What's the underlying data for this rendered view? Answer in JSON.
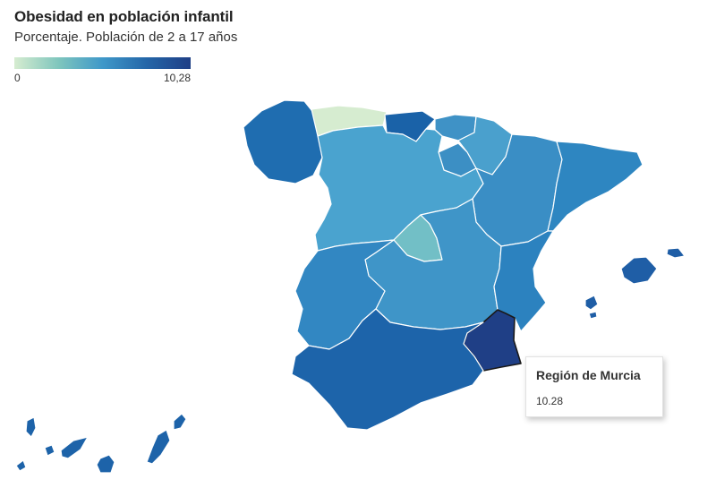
{
  "header": {
    "title": "Obesidad en población infantil",
    "subtitle": "Porcentaje. Población de 2 a 17 años"
  },
  "legend": {
    "min_label": "0",
    "max_label": "10,28",
    "colors": [
      "#d6ecd0",
      "#7fc6bd",
      "#3f98c9",
      "#2466a8",
      "#1f3f86"
    ]
  },
  "tooltip": {
    "region": "Región de Murcia",
    "value": "10.28"
  },
  "regions": [
    {
      "id": "galicia",
      "name": "Galicia",
      "color": "#1f6db0"
    },
    {
      "id": "asturias",
      "name": "Asturias",
      "color": "#d6ecd0"
    },
    {
      "id": "cantabria",
      "name": "Cantabria",
      "color": "#1a62a8"
    },
    {
      "id": "pais-vasco",
      "name": "País Vasco",
      "color": "#3f92c6"
    },
    {
      "id": "navarra",
      "name": "Navarra",
      "color": "#4aa0cd"
    },
    {
      "id": "la-rioja",
      "name": "La Rioja",
      "color": "#3c8fc4"
    },
    {
      "id": "castilla-y-leon",
      "name": "Castilla y León",
      "color": "#4aa3cf"
    },
    {
      "id": "aragon",
      "name": "Aragón",
      "color": "#3a8ec5"
    },
    {
      "id": "cataluna",
      "name": "Cataluña",
      "color": "#2e86c1"
    },
    {
      "id": "madrid",
      "name": "Madrid",
      "color": "#72bfc6"
    },
    {
      "id": "castilla-la-mancha",
      "name": "Castilla-La Mancha",
      "color": "#3f95c8"
    },
    {
      "id": "extremadura",
      "name": "Extremadura",
      "color": "#3287c2"
    },
    {
      "id": "comunidad-valenciana",
      "name": "Comunidad Valenciana",
      "color": "#2c82bf"
    },
    {
      "id": "region-de-murcia",
      "name": "Región de Murcia",
      "color": "#1f3f86"
    },
    {
      "id": "andalucia",
      "name": "Andalucía",
      "color": "#1d64aa"
    },
    {
      "id": "islas-baleares",
      "name": "Islas Baleares",
      "color": "#1f5ea6"
    },
    {
      "id": "canarias",
      "name": "Canarias",
      "color": "#1d63a9"
    }
  ]
}
